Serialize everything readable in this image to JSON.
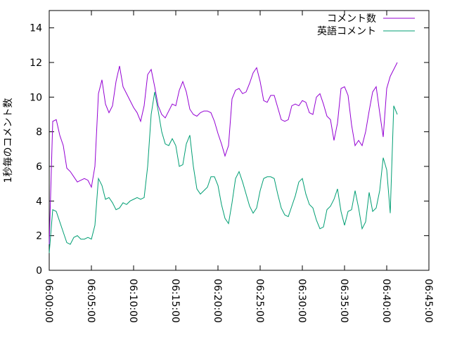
{
  "chart_data": {
    "type": "line",
    "ylabel": "1秒毎のコメント数",
    "x": [
      "06:00:00",
      "06:00:25",
      "06:00:50",
      "06:01:15",
      "06:01:40",
      "06:02:05",
      "06:02:30",
      "06:02:55",
      "06:03:20",
      "06:03:45",
      "06:04:10",
      "06:04:35",
      "06:05:00",
      "06:05:25",
      "06:05:50",
      "06:06:15",
      "06:06:40",
      "06:07:05",
      "06:07:30",
      "06:07:55",
      "06:08:20",
      "06:08:45",
      "06:09:10",
      "06:09:35",
      "06:10:00",
      "06:10:25",
      "06:10:50",
      "06:11:15",
      "06:11:40",
      "06:12:05",
      "06:12:30",
      "06:12:55",
      "06:13:20",
      "06:13:45",
      "06:14:10",
      "06:14:35",
      "06:15:00",
      "06:15:25",
      "06:15:50",
      "06:16:15",
      "06:16:40",
      "06:17:05",
      "06:17:30",
      "06:17:55",
      "06:18:20",
      "06:18:45",
      "06:19:10",
      "06:19:35",
      "06:20:00",
      "06:20:25",
      "06:20:50",
      "06:21:15",
      "06:21:40",
      "06:22:05",
      "06:22:30",
      "06:22:55",
      "06:23:20",
      "06:23:45",
      "06:24:10",
      "06:24:35",
      "06:25:00",
      "06:25:25",
      "06:25:50",
      "06:26:15",
      "06:26:40",
      "06:27:05",
      "06:27:30",
      "06:27:55",
      "06:28:20",
      "06:28:45",
      "06:29:10",
      "06:29:35",
      "06:30:00",
      "06:30:25",
      "06:30:50",
      "06:31:15",
      "06:31:40",
      "06:32:05",
      "06:32:30",
      "06:32:55",
      "06:33:20",
      "06:33:45",
      "06:34:10",
      "06:34:35",
      "06:35:00",
      "06:35:25",
      "06:35:50",
      "06:36:15",
      "06:36:40",
      "06:37:05",
      "06:37:30",
      "06:37:55",
      "06:38:20",
      "06:38:45",
      "06:39:10",
      "06:39:35",
      "06:40:00",
      "06:40:25",
      "06:40:50",
      "06:41:15"
    ],
    "series": [
      {
        "name": "コメント数",
        "color": "#9400d3",
        "values": [
          1.5,
          8.6,
          8.7,
          7.8,
          7.2,
          5.9,
          5.7,
          5.4,
          5.1,
          5.2,
          5.3,
          5.2,
          4.8,
          6.0,
          10.2,
          11.0,
          9.6,
          9.1,
          9.5,
          10.9,
          11.8,
          10.6,
          10.2,
          9.8,
          9.4,
          9.1,
          8.6,
          9.5,
          11.3,
          11.6,
          10.6,
          9.5,
          9.0,
          8.8,
          9.2,
          9.6,
          9.5,
          10.4,
          10.9,
          10.3,
          9.3,
          9.0,
          8.9,
          9.1,
          9.2,
          9.2,
          9.1,
          8.6,
          7.9,
          7.3,
          6.6,
          7.2,
          9.9,
          10.4,
          10.5,
          10.2,
          10.3,
          10.8,
          11.4,
          11.7,
          10.9,
          9.8,
          9.7,
          10.1,
          10.1,
          9.4,
          8.7,
          8.6,
          8.7,
          9.5,
          9.6,
          9.5,
          9.8,
          9.7,
          9.1,
          9.0,
          10.0,
          10.2,
          9.6,
          8.9,
          8.7,
          7.5,
          8.5,
          10.5,
          10.6,
          10.1,
          8.4,
          7.2,
          7.5,
          7.2,
          8.0,
          9.2,
          10.3,
          10.6,
          9.1,
          7.7,
          10.5,
          11.2,
          11.6,
          12.0
        ]
      },
      {
        "name": "英語コメント",
        "color": "#009e73",
        "values": [
          1.0,
          3.5,
          3.4,
          2.8,
          2.2,
          1.6,
          1.5,
          1.9,
          2.0,
          1.8,
          1.8,
          1.9,
          1.8,
          2.6,
          5.3,
          4.9,
          4.1,
          4.2,
          3.9,
          3.5,
          3.6,
          3.9,
          3.8,
          4.0,
          4.1,
          4.2,
          4.1,
          4.2,
          6.0,
          9.0,
          10.3,
          9.2,
          8.0,
          7.3,
          7.2,
          7.6,
          7.2,
          6.0,
          6.1,
          7.3,
          7.8,
          6.0,
          4.7,
          4.4,
          4.6,
          4.8,
          5.4,
          5.4,
          4.9,
          3.8,
          3.0,
          2.7,
          3.9,
          5.3,
          5.7,
          5.1,
          4.4,
          3.7,
          3.3,
          3.6,
          4.6,
          5.3,
          5.4,
          5.4,
          5.3,
          4.4,
          3.6,
          3.2,
          3.1,
          3.7,
          4.3,
          5.1,
          5.3,
          4.4,
          3.8,
          3.6,
          2.9,
          2.4,
          2.5,
          3.5,
          3.7,
          4.1,
          4.7,
          3.4,
          2.6,
          3.4,
          3.5,
          4.6,
          3.6,
          2.4,
          2.8,
          4.5,
          3.4,
          3.6,
          4.6,
          6.5,
          5.8,
          3.3,
          9.5,
          9.0
        ]
      }
    ],
    "xlim": [
      "06:00:00",
      "06:45:00"
    ],
    "xticks": [
      "06:00:00",
      "06:05:00",
      "06:10:00",
      "06:15:00",
      "06:20:00",
      "06:25:00",
      "06:30:00",
      "06:35:00",
      "06:40:00",
      "06:45:00"
    ],
    "ylim": [
      0,
      15
    ],
    "yticks": [
      0,
      2,
      4,
      6,
      8,
      10,
      12,
      14
    ],
    "legend": "top-right"
  }
}
